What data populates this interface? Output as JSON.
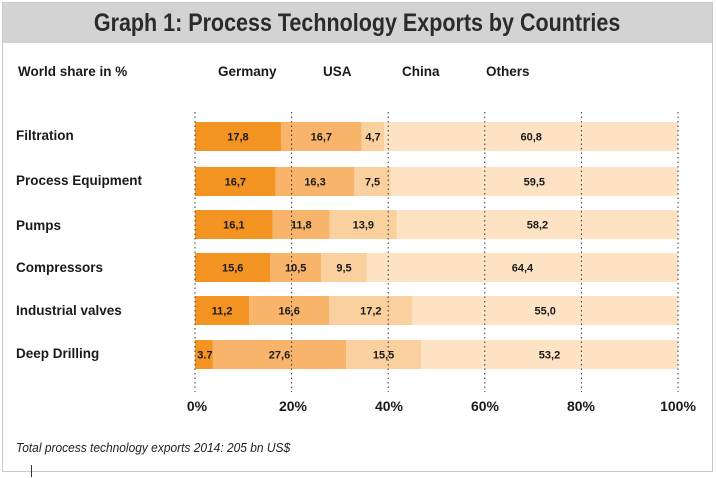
{
  "title": "Graph 1: Process Technology Exports by Countries",
  "footer": "Total process technology exports 2014: 205 bn US$",
  "chart_data": {
    "type": "bar",
    "orientation": "horizontal",
    "stacked": true,
    "title": "Graph 1: Process Technology Exports by Countries",
    "ylabel": "World share in %",
    "xlim": [
      0,
      100
    ],
    "x_ticks": [
      "0%",
      "20%",
      "40%",
      "60%",
      "80%",
      "100%"
    ],
    "grid": "vertical-dotted",
    "legend_position": "top",
    "categories": [
      "Filtration",
      "Process Equipment",
      "Pumps",
      "Compressors",
      "Industrial valves",
      "Deep Drilling"
    ],
    "series": [
      {
        "name": "Germany",
        "color": "#f29322",
        "values": [
          17.8,
          16.7,
          16.1,
          15.6,
          11.2,
          3.7
        ],
        "labels": [
          "17,8",
          "16,7",
          "16,1",
          "15,6",
          "11,2",
          "3.7"
        ]
      },
      {
        "name": "USA",
        "color": "#f7b46a",
        "values": [
          16.7,
          16.3,
          11.8,
          10.5,
          16.6,
          27.6
        ],
        "labels": [
          "16,7",
          "16,3",
          "11,8",
          "10,5",
          "16,6",
          "27,6"
        ]
      },
      {
        "name": "China",
        "color": "#fad09f",
        "values": [
          4.7,
          7.5,
          13.9,
          9.5,
          17.2,
          15.5
        ],
        "labels": [
          "4,7",
          "7,5",
          "13,9",
          "9,5",
          "17,2",
          "15,5"
        ]
      },
      {
        "name": "Others",
        "color": "#fde2c3",
        "values": [
          60.8,
          59.5,
          58.2,
          64.4,
          55.0,
          53.2
        ],
        "labels": [
          "60,8",
          "59,5",
          "58,2",
          "64,4",
          "55,0",
          "53,2"
        ]
      }
    ]
  }
}
